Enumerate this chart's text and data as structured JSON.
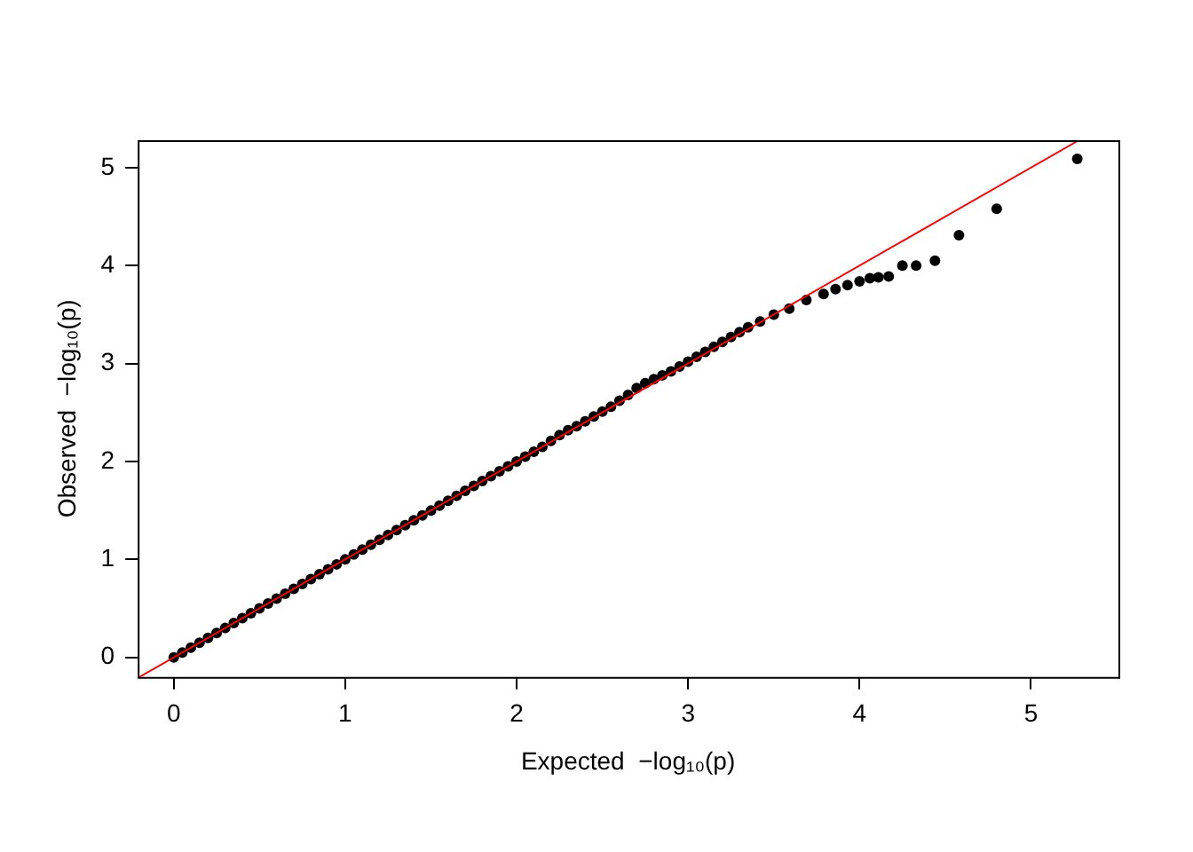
{
  "chart_data": {
    "type": "scatter",
    "xlabel": "Expected  −log₁₀(p)",
    "ylabel": "Observed  −log₁₀(p)",
    "xlim": [
      -0.21,
      5.51
    ],
    "ylim": [
      -0.2,
      5.28
    ],
    "xticks": [
      0,
      1,
      2,
      3,
      4,
      5
    ],
    "yticks": [
      0,
      1,
      2,
      3,
      4,
      5
    ],
    "grid": false,
    "legend": false,
    "series": [
      {
        "color": "#000000",
        "marker": "circle",
        "x": [
          0,
          0.05,
          0.1,
          0.15,
          0.2,
          0.25,
          0.3,
          0.35,
          0.4,
          0.45,
          0.5,
          0.55,
          0.6,
          0.65,
          0.7,
          0.75,
          0.8,
          0.85,
          0.9,
          0.95,
          1,
          1.05,
          1.1,
          1.15,
          1.2,
          1.25,
          1.3,
          1.35,
          1.4,
          1.45,
          1.5,
          1.55,
          1.6,
          1.65,
          1.7,
          1.75,
          1.8,
          1.85,
          1.9,
          1.95,
          2,
          2.05,
          2.1,
          2.15,
          2.2,
          2.25,
          2.3,
          2.35,
          2.4,
          2.45,
          2.5,
          2.55,
          2.6,
          2.65,
          2.7,
          2.75,
          2.8,
          2.85,
          2.9,
          2.95,
          3,
          3.05,
          3.1,
          3.15,
          3.2,
          3.25,
          3.3,
          3.35,
          3.42,
          3.5,
          3.59,
          3.69,
          3.79,
          3.86,
          3.93,
          4.0,
          4.06,
          4.11,
          4.17,
          4.25,
          4.33,
          4.44,
          4.58,
          4.8,
          5.27
        ],
        "values": [
          0,
          0.05,
          0.1,
          0.15,
          0.2,
          0.25,
          0.3,
          0.35,
          0.4,
          0.45,
          0.5,
          0.55,
          0.6,
          0.65,
          0.7,
          0.75,
          0.8,
          0.85,
          0.9,
          0.95,
          1,
          1.05,
          1.1,
          1.15,
          1.2,
          1.25,
          1.3,
          1.35,
          1.4,
          1.45,
          1.5,
          1.55,
          1.6,
          1.65,
          1.7,
          1.75,
          1.8,
          1.85,
          1.9,
          1.95,
          2,
          2.05,
          2.1,
          2.15,
          2.21,
          2.27,
          2.32,
          2.36,
          2.41,
          2.46,
          2.51,
          2.56,
          2.62,
          2.68,
          2.75,
          2.8,
          2.84,
          2.88,
          2.92,
          2.97,
          3.02,
          3.07,
          3.12,
          3.17,
          3.22,
          3.27,
          3.32,
          3.37,
          3.43,
          3.5,
          3.56,
          3.65,
          3.71,
          3.76,
          3.8,
          3.84,
          3.87,
          3.88,
          3.89,
          4.0,
          4.0,
          4.05,
          4.31,
          4.58,
          5.09
        ]
      },
      {
        "type": "line",
        "color": "#ff0000",
        "marker": "none",
        "x": [
          -0.2,
          5.28
        ],
        "values": [
          -0.2,
          5.28
        ]
      }
    ]
  }
}
